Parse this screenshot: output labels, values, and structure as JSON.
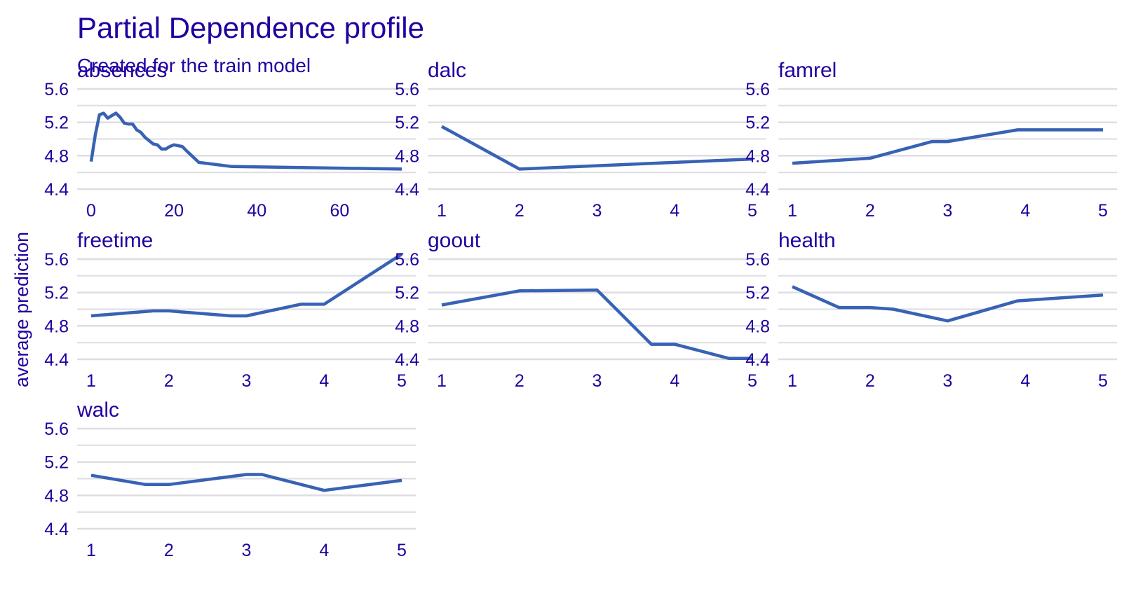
{
  "header": {
    "title": "Partial Dependence profile",
    "subtitle": "Created for the train model"
  },
  "axis": {
    "ylabel": "average prediction"
  },
  "style": {
    "text_color": "#2200a0",
    "line_color": "#3862b4",
    "grid_color": "#dedee2",
    "background": "#ffffff"
  },
  "chart_data": [
    {
      "type": "line",
      "title": "absences",
      "ylim": [
        4.4,
        5.6
      ],
      "y_ticks": [
        "4.4",
        "4.8",
        "5.2",
        "5.6"
      ],
      "x_ticks": [
        0,
        20,
        40,
        60
      ],
      "x": [
        0,
        1,
        2,
        3,
        4,
        5,
        6,
        7,
        8,
        9,
        10,
        11,
        12,
        13,
        14,
        15,
        16,
        17,
        18,
        19,
        20,
        21,
        22,
        23,
        26,
        34,
        75
      ],
      "y": [
        4.73,
        5.05,
        5.29,
        5.31,
        5.25,
        5.28,
        5.31,
        5.26,
        5.19,
        5.18,
        5.18,
        5.11,
        5.08,
        5.02,
        4.98,
        4.94,
        4.93,
        4.88,
        4.88,
        4.91,
        4.93,
        4.92,
        4.91,
        4.86,
        4.72,
        4.67,
        4.64
      ]
    },
    {
      "type": "line",
      "title": "dalc",
      "ylim": [
        4.4,
        5.6
      ],
      "y_ticks": [
        "4.4",
        "4.8",
        "5.2",
        "5.6"
      ],
      "x_ticks": [
        1,
        2,
        3,
        4,
        5
      ],
      "x": [
        1,
        2,
        5
      ],
      "y": [
        5.15,
        4.64,
        4.76
      ]
    },
    {
      "type": "line",
      "title": "famrel",
      "ylim": [
        4.4,
        5.6
      ],
      "y_ticks": [
        "4.4",
        "4.8",
        "5.2",
        "5.6"
      ],
      "x_ticks": [
        1,
        2,
        3,
        4,
        5
      ],
      "x": [
        1,
        2,
        2.8,
        3,
        3.9,
        5
      ],
      "y": [
        4.71,
        4.77,
        4.97,
        4.97,
        5.11,
        5.11
      ]
    },
    {
      "type": "line",
      "title": "freetime",
      "ylim": [
        4.4,
        5.6
      ],
      "y_ticks": [
        "4.4",
        "4.8",
        "5.2",
        "5.6"
      ],
      "x_ticks": [
        1,
        2,
        3,
        4,
        5
      ],
      "x": [
        1,
        1.8,
        2,
        2.8,
        3,
        3.7,
        4,
        5
      ],
      "y": [
        4.92,
        4.98,
        4.98,
        4.92,
        4.92,
        5.06,
        5.06,
        5.66
      ]
    },
    {
      "type": "line",
      "title": "goout",
      "ylim": [
        4.4,
        5.6
      ],
      "y_ticks": [
        "4.4",
        "4.8",
        "5.2",
        "5.6"
      ],
      "x_ticks": [
        1,
        2,
        3,
        4,
        5
      ],
      "x": [
        1,
        2,
        3,
        3.7,
        4,
        4.7,
        5
      ],
      "y": [
        5.05,
        5.22,
        5.23,
        4.58,
        4.58,
        4.41,
        4.41
      ]
    },
    {
      "type": "line",
      "title": "health",
      "ylim": [
        4.4,
        5.6
      ],
      "y_ticks": [
        "4.4",
        "4.8",
        "5.2",
        "5.6"
      ],
      "x_ticks": [
        1,
        2,
        3,
        4,
        5
      ],
      "x": [
        1,
        1.6,
        2,
        2.3,
        3,
        3.9,
        5
      ],
      "y": [
        5.27,
        5.02,
        5.02,
        5.0,
        4.86,
        5.1,
        5.17
      ]
    },
    {
      "type": "line",
      "title": "walc",
      "ylim": [
        4.4,
        5.6
      ],
      "y_ticks": [
        "4.4",
        "4.8",
        "5.2",
        "5.6"
      ],
      "x_ticks": [
        1,
        2,
        3,
        4,
        5
      ],
      "x": [
        1,
        1.7,
        2,
        3,
        3.2,
        4,
        5
      ],
      "y": [
        5.04,
        4.93,
        4.93,
        5.05,
        5.05,
        4.86,
        4.98
      ]
    }
  ]
}
